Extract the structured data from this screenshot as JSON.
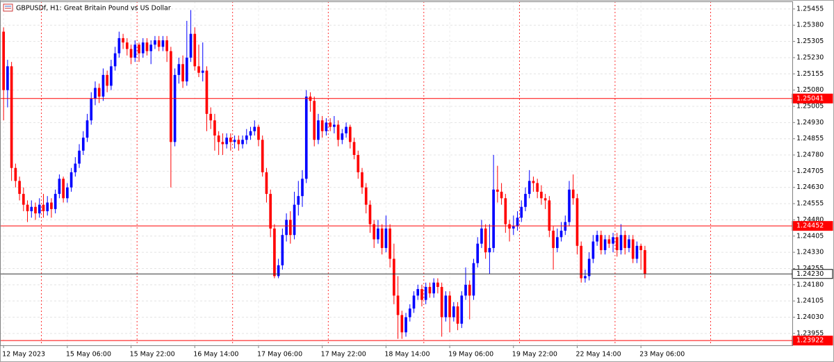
{
  "chart_data": {
    "type": "candlestick",
    "symbol": "GBPUSDf, H1:",
    "description": "Great Britain Pound vs US Dollar",
    "bull_color": "#0000ff",
    "bear_color": "#ff0000",
    "grid": true,
    "xlim": [
      -0.9,
      198
    ],
    "ylim": [
      1.239,
      1.2549
    ],
    "yticks": [
      1.25455,
      {
        "value": 1.2538,
        "label": "1.25380"
      },
      1.25305,
      {
        "value": 1.2523,
        "label": "1.25230"
      },
      1.25155,
      {
        "value": 1.2508,
        "label": "1.25080"
      },
      1.25005,
      {
        "value": 1.2493,
        "label": "1.24930"
      },
      1.24855,
      {
        "value": 1.2478,
        "label": "1.24780"
      },
      1.24705,
      {
        "value": 1.2463,
        "label": "1.24630"
      },
      1.24555,
      {
        "value": 1.2448,
        "label": "1.24480"
      },
      1.24405,
      {
        "value": 1.2433,
        "label": "1.24330"
      },
      1.24255,
      {
        "value": 1.2418,
        "label": "1.24180"
      },
      1.24105,
      {
        "value": 1.2403,
        "label": "1.24030"
      },
      1.23955
    ],
    "x_labels": [
      {
        "value": 0,
        "label": "12 May 2023"
      },
      {
        "value": 16,
        "label": "15 May 06:00"
      },
      {
        "value": 32,
        "label": "15 May 22:00"
      },
      {
        "value": 48,
        "label": "16 May 14:00"
      },
      {
        "value": 64,
        "label": "17 May 06:00"
      },
      {
        "value": 80,
        "label": "17 May 22:00"
      },
      {
        "value": 96,
        "label": "18 May 14:00"
      },
      {
        "value": 112,
        "label": "19 May 06:00"
      },
      {
        "value": 128,
        "label": "19 May 22:00"
      },
      {
        "value": 144,
        "label": "22 May 14:00"
      },
      {
        "value": 160,
        "label": "23 May 06:00"
      }
    ],
    "day_separators": [
      10,
      34,
      58,
      82,
      106,
      130,
      154,
      178
    ],
    "levels": [
      1.25041,
      1.24452,
      1.23922
    ],
    "level_color": "#ff0000",
    "bid": {
      "value": 1.2423,
      "label": "1.24230"
    },
    "ohlc": [
      [
        1.2535,
        1.2537,
        1.2494,
        1.2508
      ],
      [
        1.2508,
        1.2522,
        1.25,
        1.2519
      ],
      [
        1.2519,
        1.2521,
        1.2466,
        1.2472
      ],
      [
        1.2472,
        1.2474,
        1.2463,
        1.2466
      ],
      [
        1.2466,
        1.2468,
        1.2457,
        1.246
      ],
      [
        1.246,
        1.2463,
        1.2452,
        1.2455
      ],
      [
        1.2455,
        1.2457,
        1.2447,
        1.2452
      ],
      [
        1.2452,
        1.2457,
        1.2449,
        1.2454
      ],
      [
        1.2454,
        1.2456,
        1.2448,
        1.2451
      ],
      [
        1.2451,
        1.2458,
        1.2449,
        1.2455
      ],
      [
        1.2455,
        1.246,
        1.2449,
        1.2452
      ],
      [
        1.2452,
        1.2459,
        1.245,
        1.2456
      ],
      [
        1.2456,
        1.2458,
        1.2449,
        1.2453
      ],
      [
        1.2453,
        1.2462,
        1.2451,
        1.246
      ],
      [
        1.246,
        1.2469,
        1.2458,
        1.2467
      ],
      [
        1.2467,
        1.2468,
        1.2456,
        1.2458
      ],
      [
        1.2458,
        1.2465,
        1.2456,
        1.2463
      ],
      [
        1.2463,
        1.2472,
        1.2461,
        1.247
      ],
      [
        1.247,
        1.2477,
        1.2468,
        1.2474
      ],
      [
        1.2474,
        1.2483,
        1.2472,
        1.248
      ],
      [
        1.248,
        1.2489,
        1.2478,
        1.2486
      ],
      [
        1.2486,
        1.2497,
        1.2484,
        1.2494
      ],
      [
        1.2494,
        1.2507,
        1.2492,
        1.2504
      ],
      [
        1.2504,
        1.2512,
        1.2501,
        1.2509
      ],
      [
        1.2509,
        1.2511,
        1.2502,
        1.2505
      ],
      [
        1.2505,
        1.2518,
        1.2503,
        1.2515
      ],
      [
        1.2515,
        1.2517,
        1.2507,
        1.251
      ],
      [
        1.251,
        1.2522,
        1.2508,
        1.2519
      ],
      [
        1.2519,
        1.2528,
        1.2517,
        1.2525
      ],
      [
        1.2525,
        1.2535,
        1.2523,
        1.2532
      ],
      [
        1.2532,
        1.2534,
        1.2527,
        1.253
      ],
      [
        1.253,
        1.2532,
        1.2524,
        1.2527
      ],
      [
        1.2527,
        1.2529,
        1.252,
        1.2523
      ],
      [
        1.2523,
        1.2531,
        1.2521,
        1.2529
      ],
      [
        1.2529,
        1.253,
        1.2521,
        1.2525
      ],
      [
        1.2525,
        1.2532,
        1.2523,
        1.253
      ],
      [
        1.253,
        1.2532,
        1.2524,
        1.2526
      ],
      [
        1.2526,
        1.2531,
        1.252,
        1.2529
      ],
      [
        1.2529,
        1.2533,
        1.2527,
        1.2531
      ],
      [
        1.2531,
        1.2533,
        1.2526,
        1.2528
      ],
      [
        1.2528,
        1.2533,
        1.2526,
        1.2531
      ],
      [
        1.2531,
        1.2533,
        1.2521,
        1.2526
      ],
      [
        1.2526,
        1.2528,
        1.2463,
        1.2484
      ],
      [
        1.2484,
        1.2518,
        1.2482,
        1.2515
      ],
      [
        1.2515,
        1.2523,
        1.2511,
        1.252
      ],
      [
        1.252,
        1.2524,
        1.2509,
        1.2512
      ],
      [
        1.2512,
        1.254,
        1.251,
        1.2523
      ],
      [
        1.2523,
        1.2545,
        1.2521,
        1.2534
      ],
      [
        1.2534,
        1.2537,
        1.2517,
        1.2519
      ],
      [
        1.2519,
        1.2529,
        1.2514,
        1.2516
      ],
      [
        1.2516,
        1.253,
        1.2512,
        1.2517
      ],
      [
        1.2517,
        1.2519,
        1.2489,
        1.2497
      ],
      [
        1.2497,
        1.25,
        1.249,
        1.2494
      ],
      [
        1.2494,
        1.2497,
        1.248,
        1.2487
      ],
      [
        1.2487,
        1.2489,
        1.2478,
        1.2484
      ],
      [
        1.2484,
        1.2488,
        1.2478,
        1.2483
      ],
      [
        1.2483,
        1.2488,
        1.2481,
        1.2486
      ],
      [
        1.2486,
        1.2488,
        1.248,
        1.2484
      ],
      [
        1.2484,
        1.2487,
        1.2481,
        1.2485
      ],
      [
        1.2485,
        1.2487,
        1.248,
        1.2483
      ],
      [
        1.2483,
        1.2487,
        1.2481,
        1.2485
      ],
      [
        1.2485,
        1.249,
        1.2483,
        1.2487
      ],
      [
        1.2487,
        1.2491,
        1.2485,
        1.2489
      ],
      [
        1.2489,
        1.2494,
        1.2487,
        1.2491
      ],
      [
        1.2491,
        1.2492,
        1.2482,
        1.2485
      ],
      [
        1.2485,
        1.2487,
        1.2468,
        1.247
      ],
      [
        1.247,
        1.2472,
        1.2456,
        1.246
      ],
      [
        1.246,
        1.2462,
        1.244,
        1.2444
      ],
      [
        1.2444,
        1.2446,
        1.2421,
        1.2422
      ],
      [
        1.2422,
        1.243,
        1.2421,
        1.2427
      ],
      [
        1.2427,
        1.2444,
        1.2425,
        1.2441
      ],
      [
        1.2441,
        1.2451,
        1.2438,
        1.2448
      ],
      [
        1.2448,
        1.2452,
        1.2437,
        1.2441
      ],
      [
        1.2441,
        1.2461,
        1.2439,
        1.2455
      ],
      [
        1.2455,
        1.2466,
        1.245,
        1.2459
      ],
      [
        1.2459,
        1.2471,
        1.2454,
        1.2467
      ],
      [
        1.2467,
        1.2508,
        1.2465,
        1.2505
      ],
      [
        1.2505,
        1.2507,
        1.2498,
        1.2503
      ],
      [
        1.2503,
        1.2505,
        1.2482,
        1.2485
      ],
      [
        1.2485,
        1.2497,
        1.2483,
        1.2494
      ],
      [
        1.2494,
        1.2496,
        1.2486,
        1.2489
      ],
      [
        1.2489,
        1.2495,
        1.2487,
        1.2493
      ],
      [
        1.2493,
        1.2495,
        1.2489,
        1.2491
      ],
      [
        1.2491,
        1.2496,
        1.2488,
        1.2492
      ],
      [
        1.2492,
        1.2494,
        1.2482,
        1.2485
      ],
      [
        1.2485,
        1.249,
        1.2483,
        1.2488
      ],
      [
        1.2488,
        1.2493,
        1.2486,
        1.2491
      ],
      [
        1.2491,
        1.2492,
        1.2481,
        1.2484
      ],
      [
        1.2484,
        1.2486,
        1.2476,
        1.2478
      ],
      [
        1.2478,
        1.248,
        1.2467,
        1.247
      ],
      [
        1.247,
        1.2472,
        1.246,
        1.2463
      ],
      [
        1.2463,
        1.2465,
        1.2451,
        1.2455
      ],
      [
        1.2455,
        1.2457,
        1.2442,
        1.2446
      ],
      [
        1.2446,
        1.2448,
        1.2435,
        1.2439
      ],
      [
        1.2439,
        1.2448,
        1.2437,
        1.2444
      ],
      [
        1.2444,
        1.2446,
        1.2432,
        1.2435
      ],
      [
        1.2435,
        1.245,
        1.2433,
        1.2444
      ],
      [
        1.2444,
        1.2446,
        1.2426,
        1.243
      ],
      [
        1.243,
        1.2437,
        1.2409,
        1.2413
      ],
      [
        1.2413,
        1.2422,
        1.2393,
        1.2404
      ],
      [
        1.2404,
        1.2406,
        1.2393,
        1.2396
      ],
      [
        1.2396,
        1.2405,
        1.2394,
        1.2403
      ],
      [
        1.2403,
        1.2409,
        1.2401,
        1.2407
      ],
      [
        1.2407,
        1.2415,
        1.2405,
        1.2413
      ],
      [
        1.2413,
        1.2418,
        1.2411,
        1.2416
      ],
      [
        1.2416,
        1.2418,
        1.2408,
        1.2411
      ],
      [
        1.2411,
        1.2419,
        1.2409,
        1.2417
      ],
      [
        1.2417,
        1.2419,
        1.2412,
        1.2414
      ],
      [
        1.2414,
        1.2421,
        1.2412,
        1.2419
      ],
      [
        1.2419,
        1.2421,
        1.2414,
        1.2417
      ],
      [
        1.2417,
        1.2419,
        1.2394,
        1.2403
      ],
      [
        1.2403,
        1.2415,
        1.2401,
        1.2413
      ],
      [
        1.2413,
        1.2415,
        1.2396,
        1.2403
      ],
      [
        1.2403,
        1.241,
        1.2401,
        1.2408
      ],
      [
        1.2408,
        1.241,
        1.2397,
        1.24
      ],
      [
        1.24,
        1.2415,
        1.2398,
        1.2413
      ],
      [
        1.2413,
        1.2426,
        1.2411,
        1.2418
      ],
      [
        1.2418,
        1.242,
        1.2402,
        1.2413
      ],
      [
        1.2413,
        1.243,
        1.2411,
        1.2428
      ],
      [
        1.2428,
        1.244,
        1.2426,
        1.2437
      ],
      [
        1.2437,
        1.2448,
        1.2435,
        1.2444
      ],
      [
        1.2444,
        1.2446,
        1.243,
        1.2433
      ],
      [
        1.2433,
        1.2446,
        1.2423,
        1.2435
      ],
      [
        1.2435,
        1.2478,
        1.2433,
        1.2462
      ],
      [
        1.2462,
        1.2473,
        1.2456,
        1.2461
      ],
      [
        1.2461,
        1.2465,
        1.2455,
        1.2458
      ],
      [
        1.2458,
        1.246,
        1.2442,
        1.2446
      ],
      [
        1.2446,
        1.2448,
        1.2438,
        1.2444
      ],
      [
        1.2444,
        1.245,
        1.2441,
        1.2445
      ],
      [
        1.2445,
        1.2452,
        1.2443,
        1.2449
      ],
      [
        1.2449,
        1.2457,
        1.2447,
        1.2454
      ],
      [
        1.2454,
        1.2463,
        1.2452,
        1.246
      ],
      [
        1.246,
        1.2471,
        1.2458,
        1.2466
      ],
      [
        1.2466,
        1.2468,
        1.2461,
        1.2465
      ],
      [
        1.2465,
        1.2467,
        1.2458,
        1.2461
      ],
      [
        1.2461,
        1.2464,
        1.2455,
        1.2458
      ],
      [
        1.2458,
        1.246,
        1.2453,
        1.2457
      ],
      [
        1.2457,
        1.2459,
        1.244,
        1.2443
      ],
      [
        1.2443,
        1.2445,
        1.2425,
        1.2435
      ],
      [
        1.2435,
        1.2444,
        1.2433,
        1.244
      ],
      [
        1.244,
        1.2447,
        1.2438,
        1.2443
      ],
      [
        1.2443,
        1.245,
        1.2441,
        1.2447
      ],
      [
        1.2447,
        1.2466,
        1.2445,
        1.2462
      ],
      [
        1.2462,
        1.2469,
        1.2455,
        1.2458
      ],
      [
        1.2458,
        1.246,
        1.2432,
        1.2436
      ],
      [
        1.2436,
        1.2438,
        1.2419,
        1.2421
      ],
      [
        1.2421,
        1.2425,
        1.2419,
        1.2422
      ],
      [
        1.2422,
        1.2433,
        1.242,
        1.243
      ],
      [
        1.243,
        1.2441,
        1.2428,
        1.2438
      ],
      [
        1.2438,
        1.2443,
        1.2436,
        1.2441
      ],
      [
        1.2441,
        1.2443,
        1.2432,
        1.2434
      ],
      [
        1.2434,
        1.2441,
        1.2432,
        1.2439
      ],
      [
        1.2439,
        1.2441,
        1.2435,
        1.2437
      ],
      [
        1.2437,
        1.2442,
        1.2433,
        1.244
      ],
      [
        1.244,
        1.2442,
        1.2431,
        1.2434
      ],
      [
        1.2434,
        1.2446,
        1.2432,
        1.2441
      ],
      [
        1.2441,
        1.2443,
        1.2432,
        1.2435
      ],
      [
        1.2435,
        1.2441,
        1.2433,
        1.2439
      ],
      [
        1.2439,
        1.2441,
        1.2428,
        1.243
      ],
      [
        1.243,
        1.2438,
        1.2428,
        1.2436
      ],
      [
        1.2436,
        1.2437,
        1.2425,
        1.2434
      ],
      [
        1.2434,
        1.2436,
        1.2421,
        1.2423
      ]
    ]
  }
}
